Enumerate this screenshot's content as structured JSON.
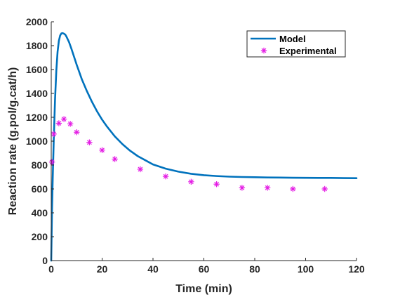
{
  "chart_data": {
    "type": "line",
    "title": "",
    "xlabel": "Time (min)",
    "ylabel": "Reaction rate (g.pol/g.cat/h)",
    "xlim": [
      0,
      120
    ],
    "ylim": [
      0,
      2000
    ],
    "xticks": [
      0,
      20,
      40,
      60,
      80,
      100,
      120
    ],
    "yticks": [
      0,
      200,
      400,
      600,
      800,
      1000,
      1200,
      1400,
      1600,
      1800,
      2000
    ],
    "grid": false,
    "legend_position": "top-right",
    "series": [
      {
        "name": "Model",
        "style": "line",
        "color": "#0072BD",
        "x": [
          0,
          0.3,
          0.6,
          1,
          1.5,
          2,
          2.5,
          3,
          3.5,
          4,
          4.5,
          5,
          5.5,
          6,
          7,
          8,
          9,
          10,
          12,
          14,
          16,
          18,
          20,
          22,
          25,
          28,
          31,
          34,
          37,
          40,
          45,
          50,
          55,
          60,
          65,
          70,
          75,
          80,
          85,
          90,
          95,
          100,
          105,
          110,
          115,
          120
        ],
        "y": [
          0,
          420,
          700,
          1020,
          1350,
          1590,
          1750,
          1840,
          1885,
          1903,
          1905,
          1900,
          1893,
          1875,
          1830,
          1770,
          1705,
          1640,
          1520,
          1420,
          1330,
          1250,
          1180,
          1120,
          1040,
          975,
          920,
          875,
          840,
          805,
          770,
          745,
          727,
          715,
          708,
          703,
          700,
          698,
          696,
          695,
          694,
          693,
          692,
          692,
          691,
          690
        ]
      },
      {
        "name": "Experimental",
        "style": "marker",
        "marker": "asterisk",
        "color": "#E41CE4",
        "x": [
          0.3,
          1,
          3,
          5,
          7.5,
          10,
          15,
          20,
          25,
          35,
          45,
          55,
          65,
          75,
          85,
          95,
          107.5
        ],
        "y": [
          825,
          1060,
          1150,
          1185,
          1145,
          1075,
          990,
          925,
          850,
          765,
          705,
          660,
          640,
          610,
          610,
          600,
          600
        ]
      }
    ]
  }
}
